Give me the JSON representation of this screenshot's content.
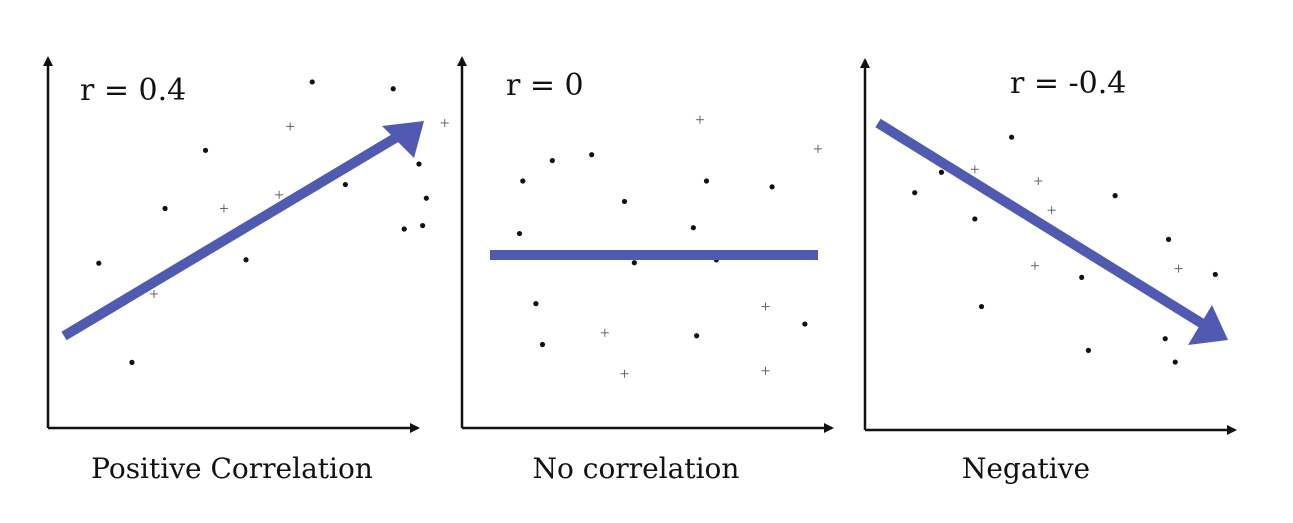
{
  "colors": {
    "trend": "#4f5ab0",
    "axis": "#111111",
    "points": "#111111"
  },
  "chart_data": [
    {
      "type": "scatter",
      "annotation": "r = 0.4",
      "caption": "Positive Correlation",
      "trend": "up",
      "xlim": [
        0,
        100
      ],
      "ylim": [
        0,
        100
      ],
      "dots": [
        [
          10,
          40
        ],
        [
          19,
          11
        ],
        [
          28,
          56
        ],
        [
          39,
          73
        ],
        [
          50,
          41
        ],
        [
          68,
          93
        ],
        [
          77,
          63
        ],
        [
          90,
          91
        ],
        [
          98,
          51
        ],
        [
          97,
          69
        ],
        [
          99,
          59
        ],
        [
          93,
          50
        ]
      ],
      "crosses": [
        [
          25,
          31
        ],
        [
          44,
          56
        ],
        [
          59,
          60
        ],
        [
          62,
          80
        ],
        [
          104,
          81
        ]
      ]
    },
    {
      "type": "scatter",
      "annotation": "r = 0",
      "caption": "No correlation",
      "trend": "flat",
      "xlim": [
        0,
        100
      ],
      "ylim": [
        0,
        100
      ],
      "dots": [
        [
          10,
          75
        ],
        [
          19,
          82
        ],
        [
          31,
          84
        ],
        [
          9,
          57
        ],
        [
          41,
          68
        ],
        [
          44,
          47
        ],
        [
          66,
          75
        ],
        [
          62,
          59
        ],
        [
          69,
          48
        ],
        [
          86,
          73
        ],
        [
          14,
          33
        ],
        [
          16,
          19
        ],
        [
          63,
          22
        ],
        [
          96,
          26
        ]
      ],
      "crosses": [
        [
          64,
          96
        ],
        [
          100,
          86
        ],
        [
          35,
          23
        ],
        [
          84,
          32
        ],
        [
          41,
          9
        ],
        [
          84,
          10
        ]
      ]
    },
    {
      "type": "scatter",
      "annotation": "r = -0.4",
      "caption": "Negative",
      "trend": "down",
      "xlim": [
        0,
        100
      ],
      "ylim": [
        0,
        100
      ],
      "dots": [
        [
          8,
          71
        ],
        [
          16,
          78
        ],
        [
          37,
          90
        ],
        [
          26,
          62
        ],
        [
          28,
          32
        ],
        [
          58,
          42
        ],
        [
          68,
          70
        ],
        [
          84,
          55
        ],
        [
          60,
          17
        ],
        [
          83,
          21
        ],
        [
          86,
          13
        ],
        [
          98,
          43
        ]
      ],
      "crosses": [
        [
          26,
          79
        ],
        [
          45,
          75
        ],
        [
          49,
          65
        ],
        [
          44,
          46
        ],
        [
          87,
          45
        ]
      ]
    }
  ]
}
